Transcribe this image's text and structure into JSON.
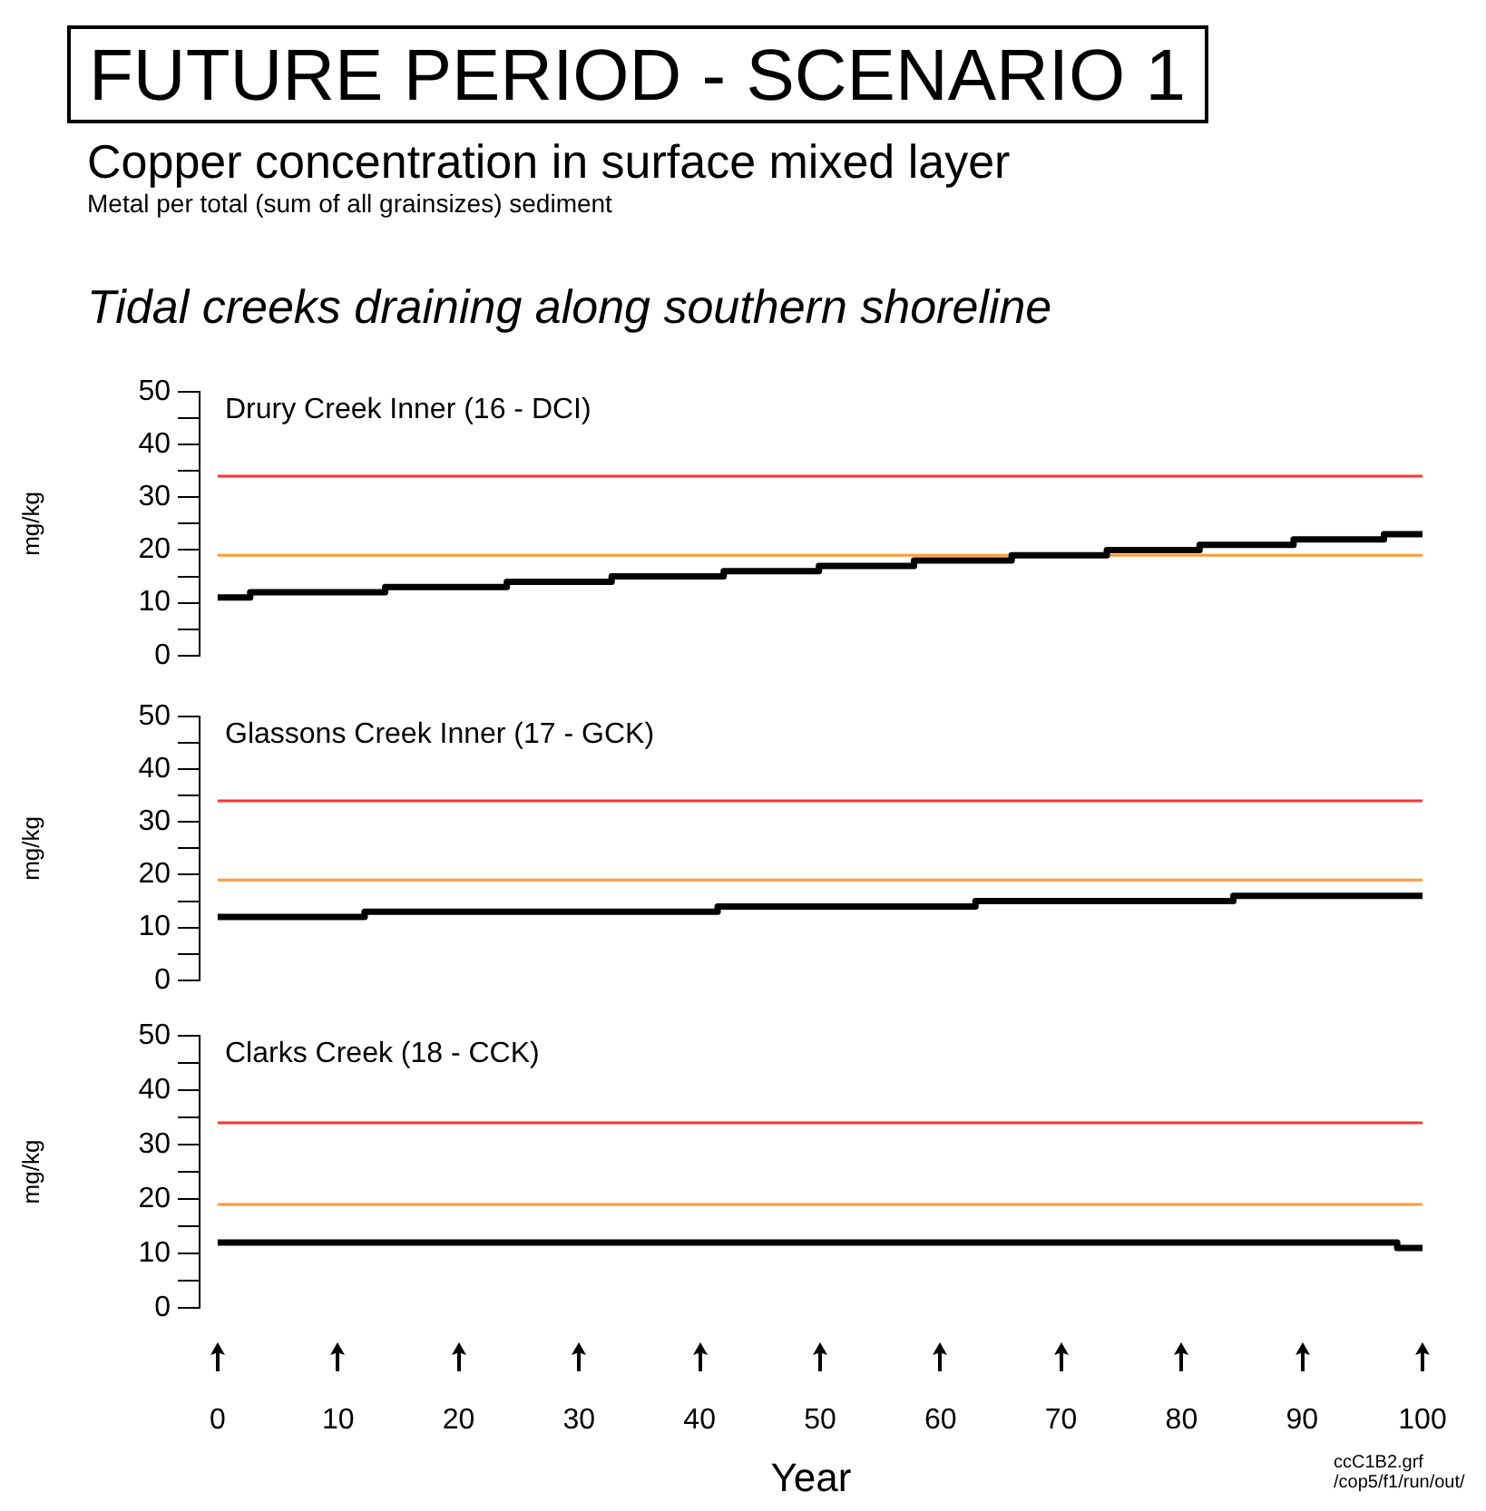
{
  "chart_data": [
    {
      "type": "other",
      "title": "FUTURE PERIOD - SCENARIO 1",
      "subtitle": "Copper concentration in surface mixed layer",
      "annotations": [
        "Metal per total (sum of all grainsizes) sediment",
        "Tidal creeks draining along southern shoreline"
      ]
    },
    {
      "type": "step",
      "title": "Drury Creek Inner (16 - DCI)",
      "ylabel": "mg/kg",
      "xlim": [
        -1.5,
        100
      ],
      "xticks": [
        0,
        10,
        20,
        30,
        40,
        50,
        60,
        70,
        80,
        90,
        100
      ],
      "ylim": [
        0,
        50
      ],
      "yticks": [
        0,
        {
          "value": 5,
          "label": null
        },
        10,
        {
          "value": 15,
          "label": null
        },
        20,
        {
          "value": 25,
          "label": null
        },
        30,
        {
          "value": 35,
          "label": null
        },
        40,
        {
          "value": 45,
          "label": null
        },
        50
      ],
      "tick_labels": "y",
      "grid": false,
      "legend": false,
      "marker": "none",
      "series": [
        {
          "color": "#000000",
          "x": [
            0,
            2.7,
            13.9,
            24,
            32.7,
            42,
            49.9,
            57.8,
            65.9,
            73.8,
            81.5,
            89.3,
            96.8,
            100
          ],
          "values": [
            11,
            12,
            13,
            14,
            15,
            16,
            17,
            18,
            19,
            20,
            21,
            22,
            23,
            23
          ]
        }
      ],
      "ref_lines": [
        {
          "axis": "y",
          "value": 34,
          "color": "#ff3333"
        },
        {
          "axis": "y",
          "value": 19,
          "color": "#ff9933"
        }
      ]
    },
    {
      "type": "step",
      "title": "Glassons Creek Inner (17 - GCK)",
      "ylabel": "mg/kg",
      "xlim": [
        -1.5,
        100
      ],
      "xticks": [
        0,
        10,
        20,
        30,
        40,
        50,
        60,
        70,
        80,
        90,
        100
      ],
      "ylim": [
        0,
        50
      ],
      "yticks": [
        0,
        {
          "value": 5,
          "label": null
        },
        10,
        {
          "value": 15,
          "label": null
        },
        20,
        {
          "value": 25,
          "label": null
        },
        30,
        {
          "value": 35,
          "label": null
        },
        40,
        {
          "value": 45,
          "label": null
        },
        50
      ],
      "tick_labels": "y",
      "grid": false,
      "legend": false,
      "marker": "none",
      "series": [
        {
          "color": "#000000",
          "x": [
            0,
            12.2,
            41.5,
            62.9,
            84.3,
            100
          ],
          "values": [
            12,
            13,
            14,
            15,
            16,
            16
          ]
        }
      ],
      "ref_lines": [
        {
          "axis": "y",
          "value": 34,
          "color": "#ff3333"
        },
        {
          "axis": "y",
          "value": 19,
          "color": "#ff9933"
        }
      ]
    },
    {
      "type": "step",
      "title": "Clarks Creek (18 - CCK)",
      "xlabel": "Year",
      "ylabel": "mg/kg",
      "xlim": [
        -1.5,
        100
      ],
      "xticks": [
        0,
        10,
        20,
        30,
        40,
        50,
        60,
        70,
        80,
        90,
        100
      ],
      "ylim": [
        0,
        50
      ],
      "yticks": [
        0,
        {
          "value": 5,
          "label": null
        },
        10,
        {
          "value": 15,
          "label": null
        },
        20,
        {
          "value": 25,
          "label": null
        },
        30,
        {
          "value": 35,
          "label": null
        },
        40,
        {
          "value": 45,
          "label": null
        },
        50
      ],
      "grid": false,
      "legend": false,
      "marker": "none",
      "series": [
        {
          "color": "#000000",
          "x": [
            0,
            97.9,
            100
          ],
          "values": [
            12,
            11,
            11
          ]
        }
      ],
      "ref_lines": [
        {
          "axis": "y",
          "value": 34,
          "color": "#ff3333"
        },
        {
          "axis": "y",
          "value": 19,
          "color": "#ff9933"
        }
      ],
      "annotations": [
        "ccC1B2.grf",
        "/cop5/f1/run/out/"
      ]
    }
  ]
}
